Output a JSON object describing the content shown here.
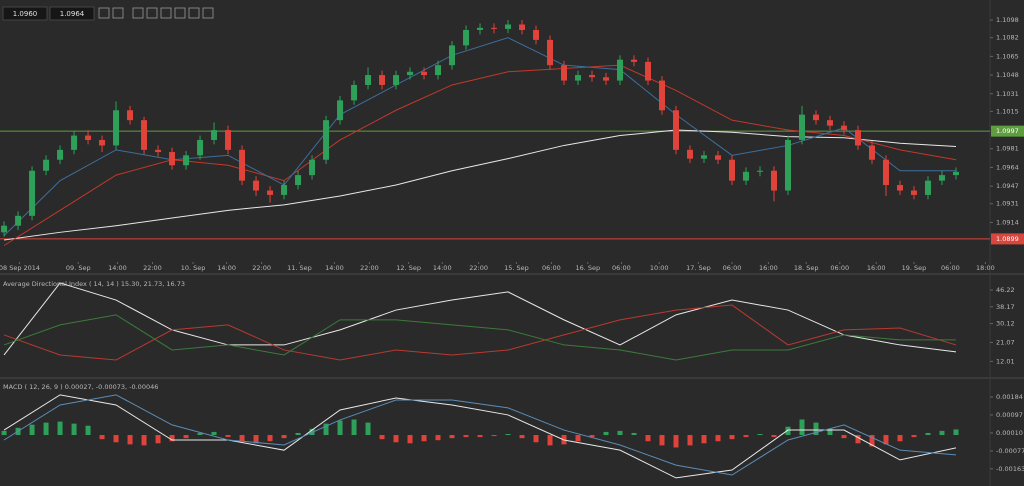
{
  "toolbar": {
    "bid": "1.0960",
    "ask": "1.0964"
  },
  "chart_data": [
    {
      "type": "candlestick",
      "xlim": [
        -0.29,
        70.43
      ],
      "xticks": [
        {
          "value": 1.1,
          "label": "08 Sep 2014"
        },
        {
          "value": 5.3,
          "label": "09. Sep"
        },
        {
          "value": 8.1,
          "label": "14:00"
        },
        {
          "value": 10.6,
          "label": "22:00"
        },
        {
          "value": 13.5,
          "label": "10. Sep"
        },
        {
          "value": 15.9,
          "label": "14:00"
        },
        {
          "value": 18.4,
          "label": "22:00"
        },
        {
          "value": 21.1,
          "label": "11. Sep"
        },
        {
          "value": 23.6,
          "label": "14:00"
        },
        {
          "value": 26.1,
          "label": "22:00"
        },
        {
          "value": 28.9,
          "label": "12. Sep"
        },
        {
          "value": 31.3,
          "label": "14:00"
        },
        {
          "value": 33.9,
          "label": "22:00"
        },
        {
          "value": 36.6,
          "label": "15. Sep"
        },
        {
          "value": 39.1,
          "label": "06:00"
        },
        {
          "value": 41.7,
          "label": "16. Sep"
        },
        {
          "value": 44.1,
          "label": "06:00"
        },
        {
          "value": 46.8,
          "label": "10:00"
        },
        {
          "value": 49.6,
          "label": "17. Sep"
        },
        {
          "value": 52,
          "label": "06:00"
        },
        {
          "value": 54.6,
          "label": "16:00"
        },
        {
          "value": 57.3,
          "label": "18. Sep"
        },
        {
          "value": 59.7,
          "label": "06:00"
        },
        {
          "value": 62.3,
          "label": "16:00"
        },
        {
          "value": 65,
          "label": "19. Sep"
        },
        {
          "value": 67.6,
          "label": "06:00"
        },
        {
          "value": 70.1,
          "label": "18:00"
        }
      ],
      "ylim": [
        1.0878,
        1.1109
      ],
      "yticks": [
        1.1098,
        1.1082,
        1.1065,
        1.1048,
        1.1031,
        1.1015,
        1.0981,
        1.0964,
        1.0947,
        1.0931,
        1.0914
      ],
      "up_color": "#2ea05a",
      "down_color": "#e0433a",
      "open": [
        1.0905,
        1.0911,
        1.092,
        1.0961,
        1.0971,
        1.098,
        1.0993,
        1.0989,
        1.0984,
        1.1016,
        1.1007,
        1.098,
        1.0978,
        1.0966,
        1.0975,
        1.0989,
        1.0998,
        1.098,
        1.0952,
        1.0943,
        1.0939,
        1.0948,
        1.0957,
        1.0971,
        1.1007,
        1.1025,
        1.1039,
        1.1048,
        1.1039,
        1.1048,
        1.1051,
        1.1048,
        1.1057,
        1.1075,
        1.1089,
        1.1091,
        1.109,
        1.1094,
        1.1089,
        1.108,
        1.1057,
        1.1043,
        1.1048,
        1.1046,
        1.1043,
        1.1062,
        1.106,
        1.1043,
        1.1016,
        1.098,
        1.0972,
        1.0975,
        1.0971,
        1.0952,
        1.096,
        1.0961,
        1.0943,
        1.0989,
        1.1012,
        1.1007,
        1.1002,
        1.0998,
        1.0984,
        1.0971,
        1.0948,
        1.0943,
        1.0939,
        1.0952,
        1.0957
      ],
      "high": [
        1.0915,
        1.0924,
        1.0965,
        1.0975,
        1.0984,
        1.0997,
        1.0998,
        1.0993,
        1.1024,
        1.102,
        1.101,
        1.0984,
        1.0982,
        1.0979,
        1.0993,
        1.1005,
        1.1002,
        1.0984,
        1.0956,
        1.0947,
        1.0952,
        1.0961,
        1.0975,
        1.1011,
        1.1029,
        1.1043,
        1.1055,
        1.1052,
        1.1052,
        1.1055,
        1.1055,
        1.1061,
        1.1079,
        1.1093,
        1.1095,
        1.1095,
        1.1098,
        1.1098,
        1.1093,
        1.1084,
        1.1061,
        1.1052,
        1.1052,
        1.105,
        1.1066,
        1.1066,
        1.1064,
        1.1047,
        1.102,
        1.0984,
        1.0979,
        1.0979,
        1.0975,
        1.0964,
        1.0965,
        1.0965,
        1.0993,
        1.102,
        1.1016,
        1.1011,
        1.1006,
        1.1002,
        1.0988,
        1.0975,
        1.0952,
        1.0947,
        1.0956,
        1.0961,
        1.0964
      ],
      "low": [
        1.0901,
        1.0907,
        1.0916,
        1.0957,
        1.0967,
        1.0976,
        1.0985,
        1.0978,
        1.098,
        1.1003,
        1.0976,
        1.0974,
        1.0962,
        1.0962,
        1.0971,
        1.0985,
        1.0976,
        1.0948,
        1.0938,
        1.0932,
        1.0935,
        1.0944,
        1.0953,
        1.0967,
        1.1003,
        1.1021,
        1.1035,
        1.1035,
        1.1035,
        1.1044,
        1.1044,
        1.1044,
        1.1053,
        1.1071,
        1.1085,
        1.1086,
        1.1086,
        1.1085,
        1.1076,
        1.1053,
        1.1039,
        1.1039,
        1.1042,
        1.1039,
        1.1039,
        1.1056,
        1.1039,
        1.1012,
        1.0976,
        1.0968,
        1.0968,
        1.0967,
        1.0948,
        1.0948,
        1.0956,
        1.0933,
        1.0939,
        1.0985,
        1.1003,
        1.0998,
        1.0994,
        1.098,
        1.0967,
        1.0938,
        1.0939,
        1.0935,
        1.0935,
        1.0948,
        1.0953
      ],
      "close": [
        1.0911,
        1.092,
        1.0961,
        1.0971,
        1.098,
        1.0993,
        1.0989,
        1.0984,
        1.1016,
        1.1007,
        1.098,
        1.0978,
        1.0966,
        1.0975,
        1.0989,
        1.0998,
        1.098,
        1.0952,
        1.0943,
        1.0939,
        1.0948,
        1.0957,
        1.0971,
        1.1007,
        1.1025,
        1.1039,
        1.1048,
        1.1039,
        1.1048,
        1.1051,
        1.1048,
        1.1057,
        1.1075,
        1.1089,
        1.1091,
        1.109,
        1.1094,
        1.1089,
        1.108,
        1.1057,
        1.1043,
        1.1048,
        1.1046,
        1.1043,
        1.1062,
        1.106,
        1.1043,
        1.1016,
        1.098,
        1.0972,
        1.0975,
        1.0971,
        1.0952,
        1.096,
        1.0961,
        1.0943,
        1.0989,
        1.1012,
        1.1007,
        1.1002,
        1.0998,
        1.0984,
        1.0971,
        1.0948,
        1.0943,
        1.0939,
        1.0952,
        1.0957,
        1.096
      ],
      "overlays": {
        "x": [
          0,
          4,
          8,
          12,
          16,
          20,
          24,
          28,
          32,
          36,
          40,
          44,
          48,
          52,
          56,
          60,
          64,
          68
        ],
        "series": [
          {
            "color": "#e8e8e8",
            "values": [
              1.0898,
              1.0905,
              1.0911,
              1.0918,
              1.0925,
              1.093,
              1.0938,
              1.0948,
              1.0961,
              1.0972,
              1.0984,
              1.0993,
              1.0998,
              1.0996,
              1.0992,
              1.0991,
              1.0986,
              1.0983
            ]
          },
          {
            "color": "#c0392b",
            "values": [
              1.0893,
              1.0925,
              1.0957,
              1.0971,
              1.0966,
              1.0952,
              1.0989,
              1.1016,
              1.1039,
              1.1051,
              1.1054,
              1.1057,
              1.1034,
              1.1007,
              1.0998,
              1.0993,
              1.098,
              1.0971
            ]
          },
          {
            "color": "#3d6f9e",
            "values": [
              1.0902,
              1.0952,
              1.098,
              1.0971,
              1.0975,
              1.0948,
              1.1012,
              1.1039,
              1.1066,
              1.1082,
              1.1057,
              1.1053,
              1.1012,
              1.0975,
              1.0984,
              1.1,
              1.0961,
              1.0961
            ]
          }
        ]
      },
      "levels": [
        {
          "value": 1.0997,
          "color": "#5e9e3e"
        },
        {
          "value": 1.0899,
          "color": "#d9463e"
        }
      ]
    },
    {
      "type": "line",
      "title": "Average Directional Index ( 14, 14 ) 15.30, 21.73, 16.73",
      "xlim": [
        -0.29,
        70.43
      ],
      "ylim": [
        5.5,
        51
      ],
      "yticks": [
        46.22,
        38.17,
        30.12,
        21.07,
        12.01
      ],
      "x": [
        0,
        4,
        8,
        12,
        16,
        20,
        24,
        28,
        32,
        36,
        40,
        44,
        48,
        52,
        56,
        60,
        64,
        68
      ],
      "series": [
        {
          "color": "#e8e8e8",
          "values": [
            15.1,
            49.6,
            41.4,
            27.1,
            19.9,
            19.9,
            27.1,
            36.6,
            41.4,
            45.3,
            31.9,
            19.9,
            34.3,
            41.4,
            36.6,
            24.7,
            19.9,
            16.6
          ]
        },
        {
          "color": "#b83a30",
          "values": [
            24.7,
            15.1,
            12.7,
            27.1,
            29.5,
            17.5,
            12.7,
            17.5,
            15.1,
            17.5,
            24.7,
            31.9,
            36.6,
            39.0,
            19.9,
            27.1,
            28.0,
            19.9
          ]
        },
        {
          "color": "#3c7a3c",
          "values": [
            19.9,
            29.5,
            34.3,
            17.5,
            19.9,
            15.1,
            31.9,
            31.9,
            29.5,
            27.1,
            19.9,
            17.5,
            12.7,
            17.5,
            17.5,
            24.7,
            22.3,
            22.3
          ]
        }
      ]
    },
    {
      "type": "macd",
      "title": "MACD ( 12, 26, 9 ) 0.00027, -0.00073, -0.00046",
      "xlim": [
        -0.29,
        70.43
      ],
      "ylim": [
        -0.00246,
        0.00256
      ],
      "yticks": [
        0.00184,
        0.00097,
        {
          "value": 0.0001,
          "label": "0.00010"
        },
        -0.00077,
        -0.00163
      ],
      "histogram": {
        "up_color": "#2ea05a",
        "down_color": "#e0433a",
        "values": [
          0.0002,
          0.00035,
          0.0005,
          0.0006,
          0.00065,
          0.00055,
          0.00045,
          -0.0002,
          -0.00035,
          -0.00045,
          -0.0005,
          -0.0004,
          -0.0003,
          -0.00015,
          0.0001,
          0.00015,
          -0.0001,
          -0.0003,
          -0.0004,
          -0.0003,
          -0.00015,
          0.0001,
          0.0003,
          0.00055,
          0.0007,
          0.00075,
          0.0006,
          -0.0002,
          -0.00035,
          -0.0004,
          -0.0003,
          -0.00025,
          -0.00015,
          -0.0001,
          -0.0001,
          -5e-05,
          5e-05,
          -0.00015,
          -0.00035,
          -0.0005,
          -0.00045,
          -0.0003,
          -0.0001,
          0.00015,
          0.0002,
          0.0001,
          -0.0003,
          -0.0005,
          -0.0006,
          -0.0005,
          -0.0004,
          -0.0003,
          -0.0002,
          -0.0001,
          5e-05,
          -0.0001,
          0.0004,
          0.00075,
          0.0006,
          0.0003,
          -0.00015,
          -0.0004,
          -0.00055,
          -0.00045,
          -0.0003,
          -0.0001,
          0.0001,
          0.0002,
          0.00027
        ]
      },
      "x": [
        0,
        4,
        8,
        12,
        16,
        20,
        24,
        28,
        32,
        36,
        40,
        44,
        48,
        52,
        56,
        60,
        64,
        68
      ],
      "series": [
        {
          "color": "#e8e8e8",
          "values": [
            0.00024,
            0.00194,
            0.00145,
            -0.00024,
            -0.00024,
            -0.00073,
            0.00121,
            0.00179,
            0.00145,
            0.00097,
            -0.00024,
            -0.00073,
            -0.00207,
            -0.00169,
            0.00024,
            0.00024,
            -0.0012,
            -0.00062
          ]
        },
        {
          "color": "#5b8db8",
          "values": [
            -0.00024,
            0.00145,
            0.00194,
            0.00049,
            -0.00024,
            -0.00048,
            0.00073,
            0.00169,
            0.00169,
            0.00131,
            0.00024,
            -0.00048,
            -0.00145,
            -0.00193,
            -0.00024,
            0.00049,
            -0.00073,
            -0.00096
          ]
        }
      ]
    }
  ]
}
